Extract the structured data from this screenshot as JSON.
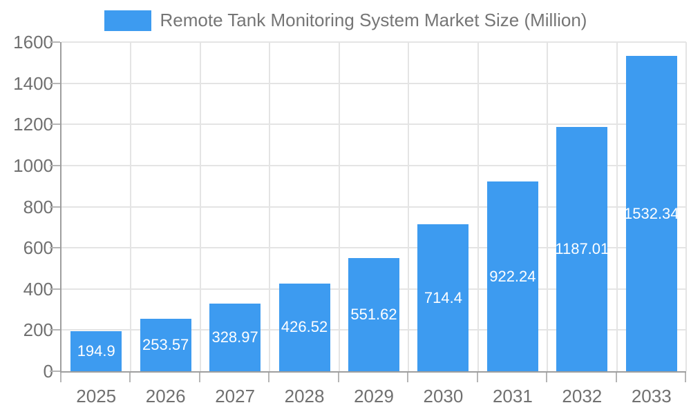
{
  "legend": {
    "label": "Remote Tank Monitoring System Market Size (Million)"
  },
  "chart_data": {
    "type": "bar",
    "title": "Remote Tank Monitoring System Market Size (Million)",
    "categories": [
      "2025",
      "2026",
      "2027",
      "2028",
      "2029",
      "2030",
      "2031",
      "2032",
      "2033"
    ],
    "values": [
      194.9,
      253.57,
      328.97,
      426.52,
      551.62,
      714.4,
      922.24,
      1187.01,
      1532.34
    ],
    "value_labels": [
      "194.9",
      "253.57",
      "328.97",
      "426.52",
      "551.62",
      "714.4",
      "922.24",
      "1187.01",
      "1532.34"
    ],
    "xlabel": "",
    "ylabel": "",
    "ylim": [
      0,
      1600
    ],
    "yticks": [
      0,
      200,
      400,
      600,
      800,
      1000,
      1200,
      1400,
      1600
    ],
    "grid": true,
    "legend_position": "top",
    "value_label_position": "inside-center"
  },
  "colors": {
    "bar": "#3d9bf0",
    "axis_line": "#9e9e9e",
    "gridline": "#e4e4e4",
    "tick_mark": "#b5b5b5",
    "tick_text": "#707070",
    "legend_text": "#757575",
    "value_label": "#ffffff",
    "background": "#ffffff"
  }
}
